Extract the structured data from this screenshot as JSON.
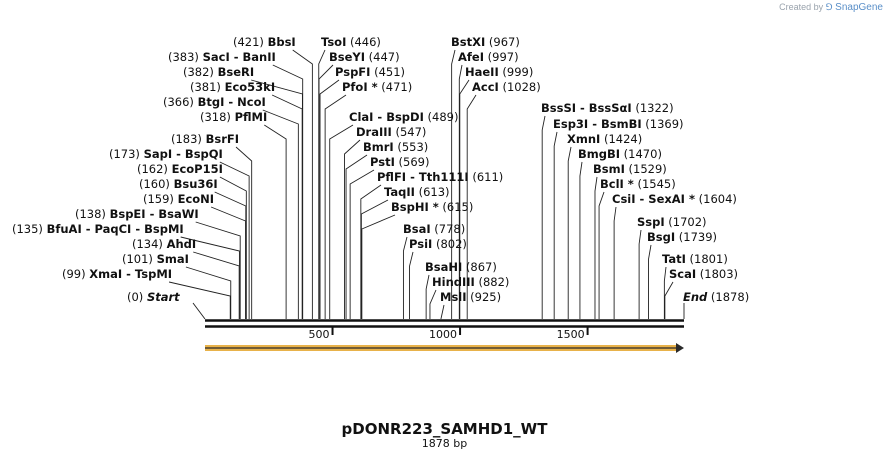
{
  "credit": {
    "prefix": "Created by",
    "brand": "SnapGene"
  },
  "map": {
    "name": "pDONR223_SAMHD1_WT",
    "length_label": "1878 bp",
    "length": 1878,
    "start_label": "Start",
    "end_label": "End",
    "start_pos": "(0)",
    "end_pos": "(1878)",
    "ticks": [
      "500",
      "1000",
      "1500"
    ],
    "tick_values": [
      500,
      1000,
      1500
    ],
    "feature": {
      "name": "orf-arrow",
      "start": 0,
      "end": 1878,
      "color": "#e8b24a"
    },
    "sites": [
      {
        "name": "BbsI",
        "pos": "(421)",
        "bp": 421,
        "order": "pos-first"
      },
      {
        "name": "TsoI",
        "pos": "(446)",
        "bp": 446
      },
      {
        "name": "BseYI",
        "pos": "(447)",
        "bp": 447
      },
      {
        "name": "SacI  -  BanII",
        "pos": "(383)",
        "bp": 383,
        "order": "pos-first"
      },
      {
        "name": "BseRI",
        "pos": "(382)",
        "bp": 382,
        "order": "pos-first"
      },
      {
        "name": "PspFI",
        "pos": "(451)",
        "bp": 451
      },
      {
        "name": "Eco53kI",
        "pos": "(381)",
        "bp": 381,
        "order": "pos-first"
      },
      {
        "name": "PfoI *",
        "pos": "(471)",
        "bp": 471
      },
      {
        "name": "BtgI  -  NcoI",
        "pos": "(366)",
        "bp": 366,
        "order": "pos-first"
      },
      {
        "name": "PflMI",
        "pos": "(318)",
        "bp": 318,
        "order": "pos-first"
      },
      {
        "name": "ClaI  -  BspDI",
        "pos": "(489)",
        "bp": 489
      },
      {
        "name": "BsrFI",
        "pos": "(183)",
        "bp": 183,
        "order": "pos-first"
      },
      {
        "name": "DraIII",
        "pos": "(547)",
        "bp": 547
      },
      {
        "name": "SapI  -  BspQI",
        "pos": "(173)",
        "bp": 173,
        "order": "pos-first"
      },
      {
        "name": "BmrI",
        "pos": "(553)",
        "bp": 553
      },
      {
        "name": "EcoP15I",
        "pos": "(162)",
        "bp": 162,
        "order": "pos-first"
      },
      {
        "name": "PstI",
        "pos": "(569)",
        "bp": 569
      },
      {
        "name": "Bsu36I",
        "pos": "(160)",
        "bp": 160,
        "order": "pos-first"
      },
      {
        "name": "PflFI  -  Tth111I",
        "pos": "(611)",
        "bp": 611
      },
      {
        "name": "EcoNI",
        "pos": "(159)",
        "bp": 159,
        "order": "pos-first"
      },
      {
        "name": "TaqII",
        "pos": "(613)",
        "bp": 613
      },
      {
        "name": "BspEI  -  BsaWI",
        "pos": "(138)",
        "bp": 138,
        "order": "pos-first"
      },
      {
        "name": "BspHI *",
        "pos": "(615)",
        "bp": 615
      },
      {
        "name": "BfuAI  -  PaqCI  -  BspMI",
        "pos": "(135)",
        "bp": 135,
        "order": "pos-first"
      },
      {
        "name": "AhdI",
        "pos": "(134)",
        "bp": 134,
        "order": "pos-first"
      },
      {
        "name": "SmaI",
        "pos": "(101)",
        "bp": 101,
        "order": "pos-first"
      },
      {
        "name": "XmaI  -  TspMI",
        "pos": "(99)",
        "bp": 99,
        "order": "pos-first"
      },
      {
        "name": "BsaI",
        "pos": "(778)",
        "bp": 778
      },
      {
        "name": "PsiI",
        "pos": "(802)",
        "bp": 802
      },
      {
        "name": "BsaHI",
        "pos": "(867)",
        "bp": 867
      },
      {
        "name": "HindIII",
        "pos": "(882)",
        "bp": 882
      },
      {
        "name": "MslI",
        "pos": "(925)",
        "bp": 925
      },
      {
        "name": "BstXI",
        "pos": "(967)",
        "bp": 967
      },
      {
        "name": "AfeI",
        "pos": "(997)",
        "bp": 997
      },
      {
        "name": "HaeII",
        "pos": "(999)",
        "bp": 999
      },
      {
        "name": "AccI",
        "pos": "(1028)",
        "bp": 1028
      },
      {
        "name": "BssSI  -  BssSαI",
        "pos": "(1322)",
        "bp": 1322
      },
      {
        "name": "Esp3I  -  BsmBI",
        "pos": "(1369)",
        "bp": 1369
      },
      {
        "name": "XmnI",
        "pos": "(1424)",
        "bp": 1424
      },
      {
        "name": "BmgBI",
        "pos": "(1470)",
        "bp": 1470
      },
      {
        "name": "BsmI",
        "pos": "(1529)",
        "bp": 1529
      },
      {
        "name": "BclI *",
        "pos": "(1545)",
        "bp": 1545
      },
      {
        "name": "CsiI  -  SexAI *",
        "pos": "(1604)",
        "bp": 1604
      },
      {
        "name": "SspI",
        "pos": "(1702)",
        "bp": 1702
      },
      {
        "name": "BsgI",
        "pos": "(1739)",
        "bp": 1739
      },
      {
        "name": "TatI",
        "pos": "(1801)",
        "bp": 1801
      },
      {
        "name": "ScaI",
        "pos": "(1803)",
        "bp": 1803
      }
    ]
  }
}
